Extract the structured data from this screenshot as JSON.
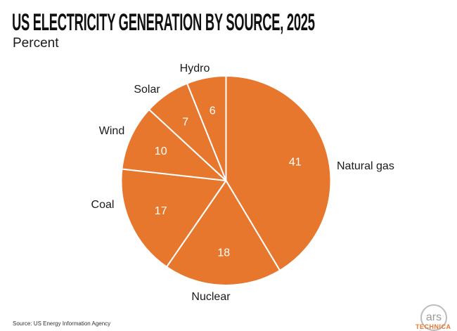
{
  "header": {
    "title": "US ELECTRICITY GENERATION BY SOURCE, 2025",
    "subtitle": "Percent"
  },
  "chart_data": {
    "type": "pie",
    "title": "US Electricity Generation by Source, 2025",
    "unit": "Percent",
    "slices": [
      {
        "label": "Natural gas",
        "value": 41
      },
      {
        "label": "Nuclear",
        "value": 18
      },
      {
        "label": "Coal",
        "value": 17
      },
      {
        "label": "Wind",
        "value": 10
      },
      {
        "label": "Solar",
        "value": 7
      },
      {
        "label": "Hydro",
        "value": 6
      }
    ],
    "colors": {
      "slice_fill": "#e8772e",
      "divider": "#ffffff",
      "value_label": "#ffffff",
      "outer_label": "#1a1a1a"
    }
  },
  "footer": {
    "source": "Source:  US Energy Information Agency",
    "logo_text": "ars",
    "logo_sub": "TECHNICA"
  }
}
